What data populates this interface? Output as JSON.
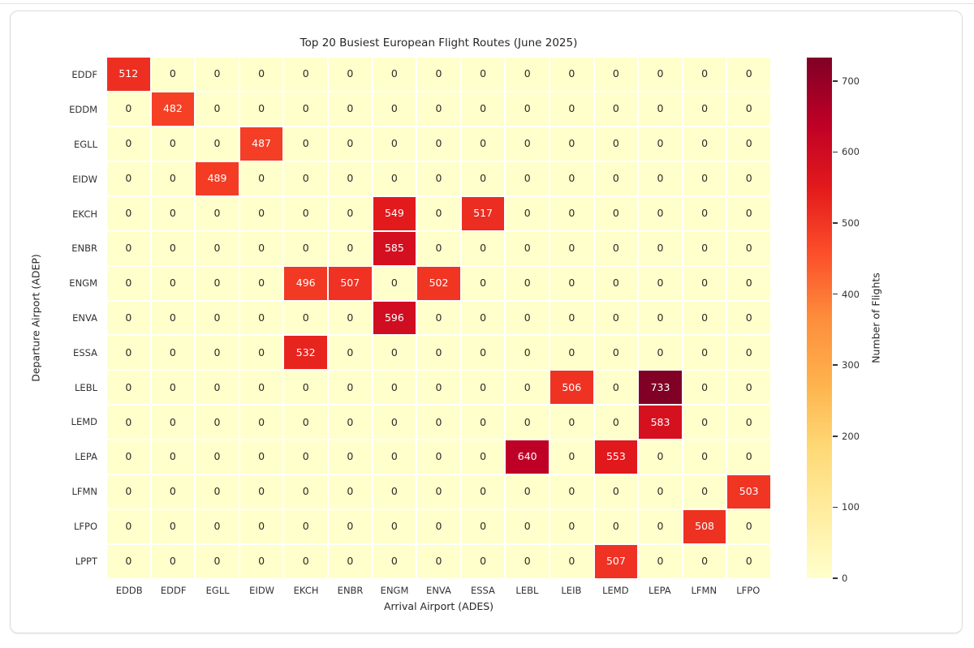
{
  "style": {
    "text_color": "#333333",
    "cell_text_dark": "#2b2b22",
    "cell_text_light": "#ffffff",
    "grid_line_color": "#ffffff",
    "card_border": "#d9dbe1",
    "background": "#ffffff"
  },
  "chart_data": {
    "type": "heatmap",
    "title": "Top 20 Busiest European Flight Routes (June 2025)",
    "xlabel": "Arrival Airport (ADES)",
    "ylabel": "Departure Airport (ADEP)",
    "x_categories": [
      "EDDB",
      "EDDF",
      "EGLL",
      "EIDW",
      "EKCH",
      "ENBR",
      "ENGM",
      "ENVA",
      "ESSA",
      "LEBL",
      "LEIB",
      "LEMD",
      "LEPA",
      "LFMN",
      "LFPO"
    ],
    "y_categories": [
      "EDDF",
      "EDDM",
      "EGLL",
      "EIDW",
      "EKCH",
      "ENBR",
      "ENGM",
      "ENVA",
      "ESSA",
      "LEBL",
      "LEMD",
      "LEPA",
      "LFMN",
      "LFPO",
      "LPPT"
    ],
    "values": [
      [
        512,
        0,
        0,
        0,
        0,
        0,
        0,
        0,
        0,
        0,
        0,
        0,
        0,
        0,
        0
      ],
      [
        0,
        482,
        0,
        0,
        0,
        0,
        0,
        0,
        0,
        0,
        0,
        0,
        0,
        0,
        0
      ],
      [
        0,
        0,
        0,
        487,
        0,
        0,
        0,
        0,
        0,
        0,
        0,
        0,
        0,
        0,
        0
      ],
      [
        0,
        0,
        489,
        0,
        0,
        0,
        0,
        0,
        0,
        0,
        0,
        0,
        0,
        0,
        0
      ],
      [
        0,
        0,
        0,
        0,
        0,
        0,
        549,
        0,
        517,
        0,
        0,
        0,
        0,
        0,
        0
      ],
      [
        0,
        0,
        0,
        0,
        0,
        0,
        585,
        0,
        0,
        0,
        0,
        0,
        0,
        0,
        0
      ],
      [
        0,
        0,
        0,
        0,
        496,
        507,
        0,
        502,
        0,
        0,
        0,
        0,
        0,
        0,
        0
      ],
      [
        0,
        0,
        0,
        0,
        0,
        0,
        596,
        0,
        0,
        0,
        0,
        0,
        0,
        0,
        0
      ],
      [
        0,
        0,
        0,
        0,
        532,
        0,
        0,
        0,
        0,
        0,
        0,
        0,
        0,
        0,
        0
      ],
      [
        0,
        0,
        0,
        0,
        0,
        0,
        0,
        0,
        0,
        0,
        506,
        0,
        733,
        0,
        0
      ],
      [
        0,
        0,
        0,
        0,
        0,
        0,
        0,
        0,
        0,
        0,
        0,
        0,
        583,
        0,
        0
      ],
      [
        0,
        0,
        0,
        0,
        0,
        0,
        0,
        0,
        0,
        640,
        0,
        553,
        0,
        0,
        0
      ],
      [
        0,
        0,
        0,
        0,
        0,
        0,
        0,
        0,
        0,
        0,
        0,
        0,
        0,
        0,
        503
      ],
      [
        0,
        0,
        0,
        0,
        0,
        0,
        0,
        0,
        0,
        0,
        0,
        0,
        0,
        508,
        0
      ],
      [
        0,
        0,
        0,
        0,
        0,
        0,
        0,
        0,
        0,
        0,
        0,
        507,
        0,
        0,
        0
      ]
    ],
    "annotated": true,
    "legend_position": "right-colorbar",
    "grid": false,
    "colormap": {
      "name": "YlOrRd",
      "stops": [
        {
          "pos": 0.0,
          "color": "#ffffcc"
        },
        {
          "pos": 0.125,
          "color": "#ffeda0"
        },
        {
          "pos": 0.25,
          "color": "#fed976"
        },
        {
          "pos": 0.375,
          "color": "#feb24c"
        },
        {
          "pos": 0.5,
          "color": "#fd8d3c"
        },
        {
          "pos": 0.625,
          "color": "#fc4e2a"
        },
        {
          "pos": 0.75,
          "color": "#e31a1c"
        },
        {
          "pos": 0.875,
          "color": "#bd0026"
        },
        {
          "pos": 1.0,
          "color": "#800026"
        }
      ]
    },
    "colorbar": {
      "label": "Number of Flights",
      "vmin": 0,
      "vmax": 733,
      "ticks": [
        0,
        100,
        200,
        300,
        400,
        500,
        600,
        700
      ]
    }
  }
}
